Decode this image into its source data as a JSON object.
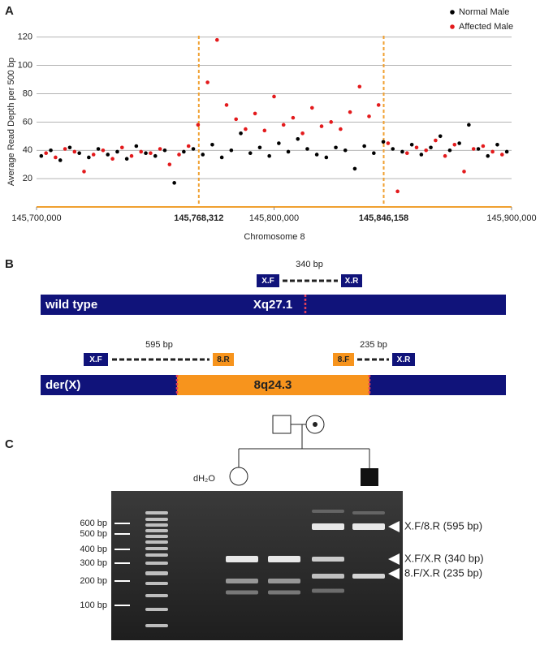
{
  "chart_data": {
    "type": "scatter",
    "panel_label": "A",
    "xlabel": "Chromosome 8",
    "ylabel": "Average Read Depth per 500 bp",
    "xlim": [
      145700000,
      145900000
    ],
    "ylim": [
      0,
      125
    ],
    "xticks": [
      {
        "value": 145700000,
        "label": "145,700,000"
      },
      {
        "value": 145800000,
        "label": "145,800,000"
      },
      {
        "value": 145900000,
        "label": "145,900,000"
      }
    ],
    "yticks": [
      20,
      40,
      60,
      80,
      100,
      120
    ],
    "vlines": [
      {
        "value": 145768312,
        "label": "145,768,312"
      },
      {
        "value": 145846158,
        "label": "145,846,158"
      }
    ],
    "vline_color": "#f0a030",
    "axis_color": "#f0a030",
    "grid": true,
    "legend": "top-right",
    "series": [
      {
        "name": "Normal Male",
        "color": "#000000",
        "x": [
          145702000,
          145706000,
          145710000,
          145714000,
          145718000,
          145722000,
          145726000,
          145730000,
          145734000,
          145738000,
          145742000,
          145746000,
          145750000,
          145754000,
          145758000,
          145762000,
          145766000,
          145770000,
          145774000,
          145778000,
          145782000,
          145786000,
          145790000,
          145794000,
          145798000,
          145802000,
          145806000,
          145810000,
          145814000,
          145818000,
          145822000,
          145826000,
          145830000,
          145834000,
          145838000,
          145842000,
          145846000,
          145850000,
          145854000,
          145858000,
          145862000,
          145866000,
          145870000,
          145874000,
          145878000,
          145882000,
          145886000,
          145890000,
          145894000,
          145898000
        ],
        "values": [
          36,
          40,
          33,
          42,
          38,
          35,
          41,
          37,
          39,
          34,
          43,
          38,
          36,
          40,
          17,
          39,
          41,
          37,
          44,
          35,
          40,
          52,
          38,
          42,
          36,
          45,
          39,
          48,
          41,
          37,
          35,
          42,
          40,
          27,
          43,
          38,
          46,
          41,
          39,
          44,
          37,
          42,
          50,
          40,
          45,
          58,
          41,
          36,
          44,
          39
        ]
      },
      {
        "name": "Affected Male",
        "color": "#e31a1c",
        "x": [
          145704000,
          145708000,
          145712000,
          145716000,
          145720000,
          145724000,
          145728000,
          145732000,
          145736000,
          145740000,
          145744000,
          145748000,
          145752000,
          145756000,
          145760000,
          145764000,
          145768000,
          145772000,
          145776000,
          145780000,
          145784000,
          145788000,
          145792000,
          145796000,
          145800000,
          145804000,
          145808000,
          145812000,
          145816000,
          145820000,
          145824000,
          145828000,
          145832000,
          145836000,
          145840000,
          145844000,
          145848000,
          145852000,
          145856000,
          145860000,
          145864000,
          145868000,
          145872000,
          145876000,
          145880000,
          145884000,
          145888000,
          145892000,
          145896000
        ],
        "values": [
          38,
          35,
          41,
          39,
          25,
          37,
          40,
          34,
          42,
          36,
          39,
          38,
          41,
          30,
          37,
          43,
          58,
          88,
          118,
          72,
          62,
          55,
          66,
          54,
          78,
          58,
          63,
          52,
          70,
          57,
          60,
          55,
          67,
          85,
          64,
          72,
          45,
          11,
          38,
          42,
          40,
          47,
          36,
          44,
          25,
          41,
          43,
          39,
          37
        ]
      }
    ]
  },
  "panel_b": {
    "panel_label": "B",
    "wild_type": {
      "label": "wild type",
      "band": "Xq27.1",
      "primer_f": "X.F",
      "primer_r": "X.R",
      "product": "340 bp"
    },
    "derivative": {
      "label": "der(X)",
      "insert": "8q24.3",
      "primer_1f": "X.F",
      "primer_1r": "8.R",
      "product_1": "595 bp",
      "primer_2f": "8.F",
      "primer_2r": "X.R",
      "product_2": "235 bp"
    }
  },
  "panel_c": {
    "panel_label": "C",
    "control_lane": "dH₂O",
    "ladder_labels": [
      "600 bp",
      "500 bp",
      "400 bp",
      "300 bp",
      "200 bp",
      "100 bp"
    ],
    "product_labels": [
      "X.F/8.R (595 bp)",
      "X.F/X.R (340 bp)",
      "8.F/X.R (235 bp)"
    ]
  }
}
